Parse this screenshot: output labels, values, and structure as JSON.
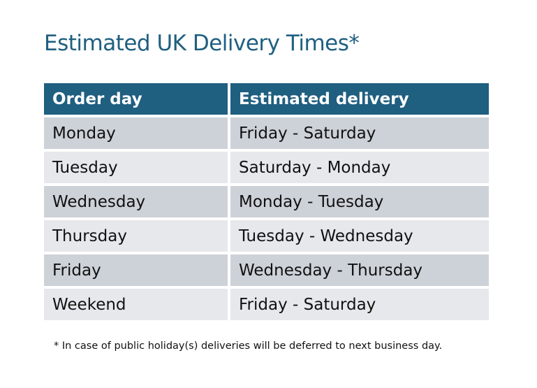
{
  "title": "Estimated UK Delivery Times*",
  "table": {
    "headers": [
      "Order day",
      "Estimated delivery"
    ],
    "rows": [
      [
        "Monday",
        "Friday - Saturday"
      ],
      [
        "Tuesday",
        "Saturday - Monday"
      ],
      [
        "Wednesday",
        "Monday - Tuesday"
      ],
      [
        "Thursday",
        "Tuesday - Wednesday"
      ],
      [
        "Friday",
        "Wednesday - Thursday"
      ],
      [
        "Weekend",
        "Friday - Saturday"
      ]
    ]
  },
  "footnote": "* In case of public holiday(s) deliveries will be deferred to next business day.",
  "colors": {
    "accent": "#1F5F80",
    "row_dark": "#CDD1D8",
    "row_light": "#E6E8EB"
  }
}
